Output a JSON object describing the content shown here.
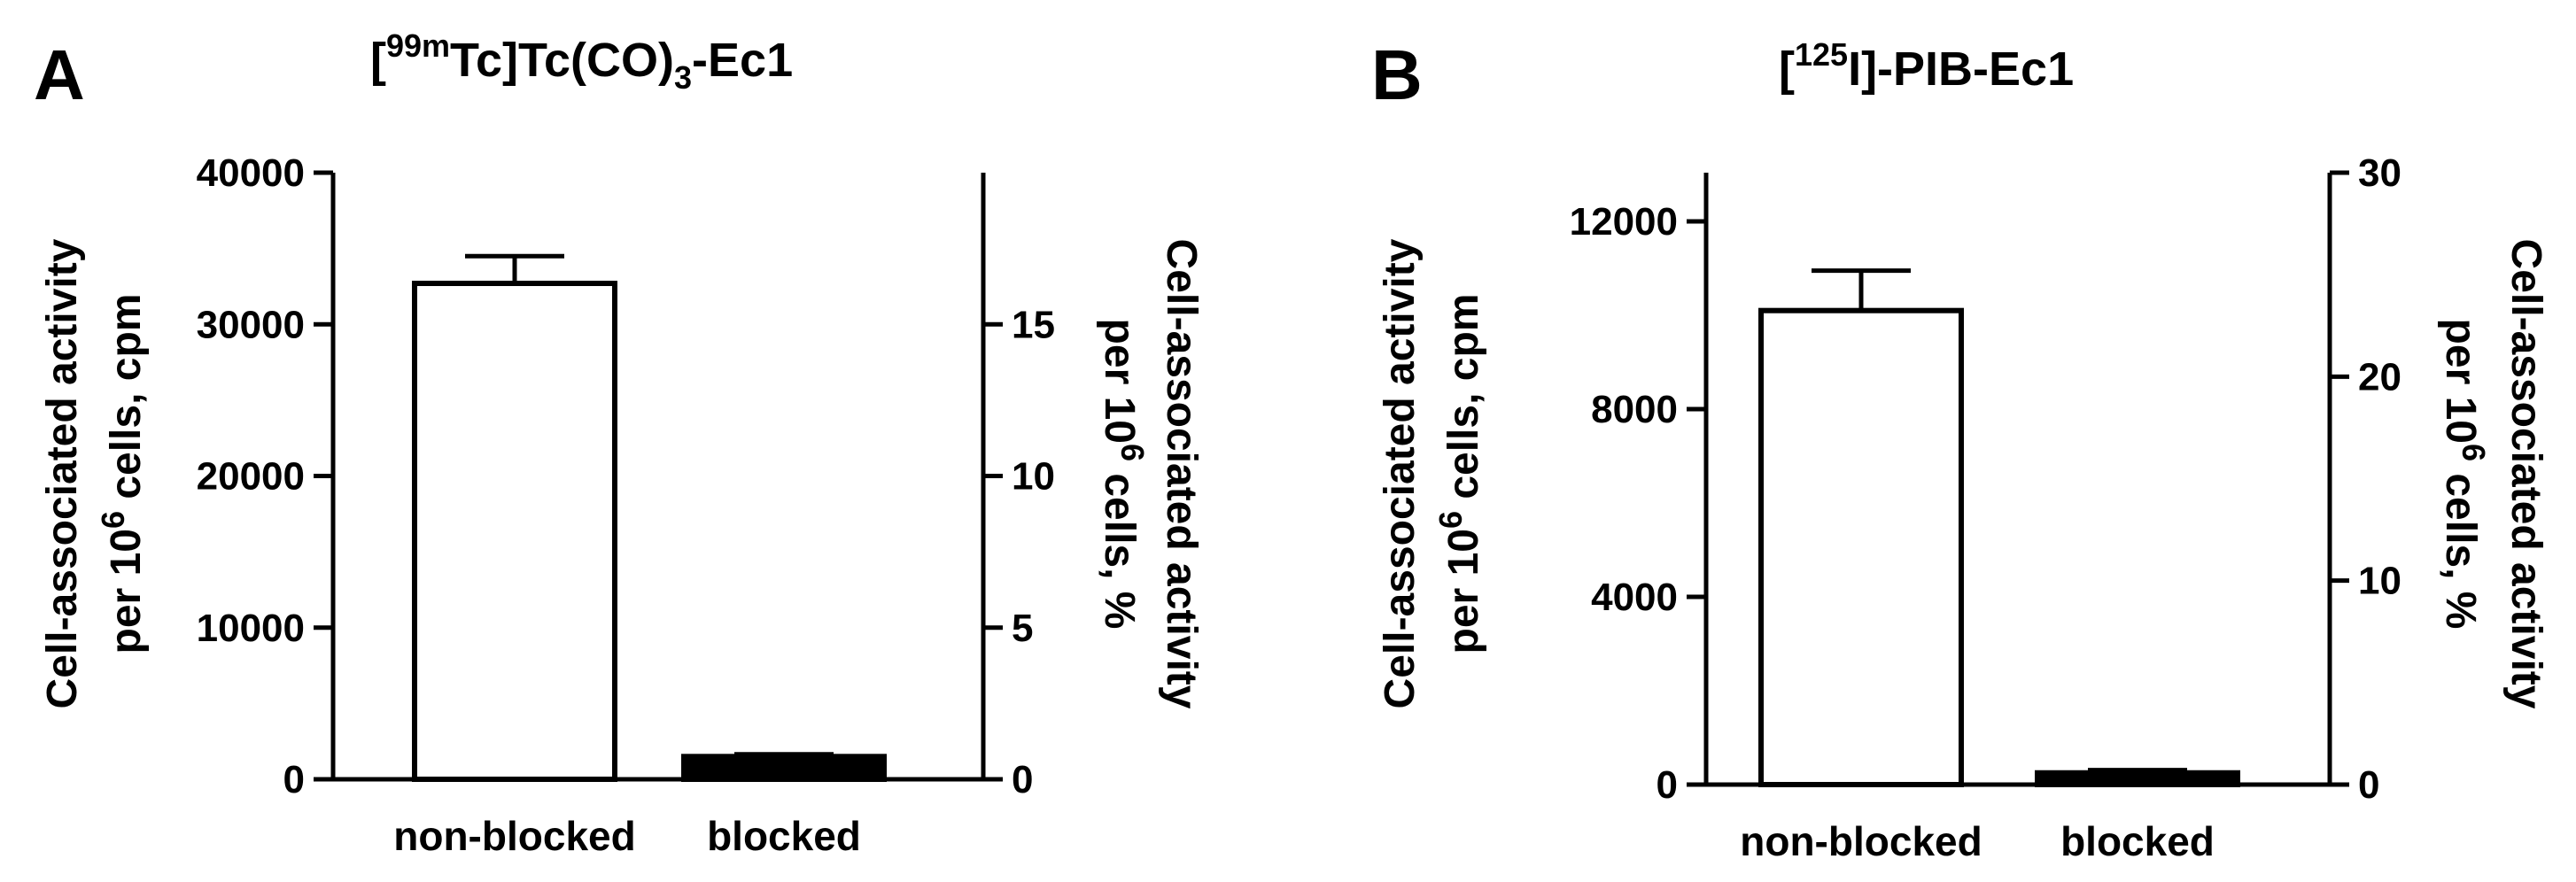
{
  "chart_data": [
    {
      "type": "bar",
      "panel": "A",
      "title": {
        "prefix": "[",
        "sup": "99m",
        "main": "Tc]Tc(CO)",
        "sub": "3",
        "suffix": "-Ec1"
      },
      "categories": [
        "non-blocked",
        "blocked"
      ],
      "values": [
        32700,
        1500
      ],
      "errors": [
        1800,
        150
      ],
      "bar_fills": [
        "#ffffff",
        "#000000"
      ],
      "y_left": {
        "label_line1": "Cell-associated activity",
        "label_line2": {
          "prefix": "per 10",
          "sup": "6",
          "suffix": " cells, cpm"
        },
        "lim": [
          0,
          40000
        ],
        "ticks": [
          0,
          10000,
          20000,
          30000,
          40000
        ],
        "tick_labels": [
          "0",
          "10000",
          "20000",
          "30000",
          "40000"
        ]
      },
      "y_right": {
        "label_line1": "Cell-associated activity",
        "label_line2": {
          "prefix": "per 10",
          "sup": "6",
          "suffix": " cells, %"
        },
        "lim": [
          0,
          18.9
        ],
        "ticks": [
          0,
          5,
          10,
          15
        ],
        "tick_labels": [
          "0",
          "5",
          "10",
          "15"
        ]
      }
    },
    {
      "type": "bar",
      "panel": "B",
      "title": {
        "prefix": "[",
        "sup": "125",
        "main": "I]-PIB-Ec1",
        "sub": "",
        "suffix": ""
      },
      "categories": [
        "non-blocked",
        "blocked"
      ],
      "values": [
        10100,
        250
      ],
      "errors": [
        850,
        60
      ],
      "bar_fills": [
        "#ffffff",
        "#000000"
      ],
      "y_left": {
        "label_line1": "Cell-associated activity",
        "label_line2": {
          "prefix": "per 10",
          "sup": "6",
          "suffix": " cells, cpm"
        },
        "lim": [
          0,
          13000
        ],
        "ticks": [
          0,
          4000,
          8000,
          12000
        ],
        "tick_labels": [
          "0",
          "4000",
          "8000",
          "12000"
        ]
      },
      "y_right": {
        "label_line1": "Cell-associated activity",
        "label_line2": {
          "prefix": "per 10",
          "sup": "6",
          "suffix": " cells, %"
        },
        "lim": [
          0,
          30
        ],
        "ticks": [
          0,
          10,
          20,
          30
        ],
        "tick_labels": [
          "0",
          "10",
          "20",
          "30"
        ]
      }
    }
  ]
}
